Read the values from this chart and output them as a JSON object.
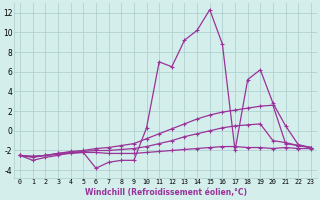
{
  "xlabel": "Windchill (Refroidissement éolien,°C)",
  "bg_color": "#d4eeec",
  "line_color": "#993399",
  "grid_color": "#aacccc",
  "x_ticks": [
    0,
    1,
    2,
    3,
    4,
    5,
    6,
    7,
    8,
    9,
    10,
    11,
    12,
    13,
    14,
    15,
    16,
    17,
    18,
    19,
    20,
    21,
    22,
    23
  ],
  "ylim": [
    -4.8,
    13
  ],
  "xlim": [
    -0.5,
    23.5
  ],
  "yticks": [
    -4,
    -2,
    0,
    2,
    4,
    6,
    8,
    10,
    12
  ],
  "series": [
    {
      "x": [
        0,
        1,
        2,
        3,
        4,
        5,
        6,
        7,
        8,
        9,
        10,
        11,
        12,
        13,
        14,
        15,
        16,
        17,
        18,
        19,
        20,
        21,
        22,
        23
      ],
      "y": [
        -2.5,
        -3.0,
        -2.7,
        -2.5,
        -2.2,
        -2.2,
        -3.8,
        -3.2,
        -3.0,
        -3.0,
        0.3,
        7.0,
        6.5,
        9.2,
        10.2,
        12.3,
        8.8,
        -2.0,
        5.2,
        6.2,
        2.8,
        0.5,
        -1.4,
        -1.7
      ]
    },
    {
      "x": [
        0,
        1,
        2,
        3,
        4,
        5,
        6,
        7,
        8,
        9,
        10,
        11,
        12,
        13,
        14,
        15,
        16,
        17,
        18,
        19,
        20,
        21,
        22,
        23
      ],
      "y": [
        -2.5,
        -2.7,
        -2.5,
        -2.3,
        -2.1,
        -2.0,
        -1.8,
        -1.7,
        -1.5,
        -1.3,
        -0.8,
        -0.3,
        0.2,
        0.7,
        1.2,
        1.6,
        1.9,
        2.1,
        2.3,
        2.5,
        2.6,
        -1.3,
        -1.5,
        -1.7
      ]
    },
    {
      "x": [
        0,
        1,
        2,
        3,
        4,
        5,
        6,
        7,
        8,
        9,
        10,
        11,
        12,
        13,
        14,
        15,
        16,
        17,
        18,
        19,
        20,
        21,
        22,
        23
      ],
      "y": [
        -2.5,
        -2.6,
        -2.5,
        -2.3,
        -2.2,
        -2.1,
        -2.0,
        -2.0,
        -1.9,
        -1.8,
        -1.6,
        -1.3,
        -1.0,
        -0.6,
        -0.3,
        0.0,
        0.3,
        0.5,
        0.6,
        0.7,
        -1.0,
        -1.2,
        -1.5,
        -1.7
      ]
    },
    {
      "x": [
        0,
        1,
        2,
        3,
        4,
        5,
        6,
        7,
        8,
        9,
        10,
        11,
        12,
        13,
        14,
        15,
        16,
        17,
        18,
        19,
        20,
        21,
        22,
        23
      ],
      "y": [
        -2.5,
        -2.6,
        -2.5,
        -2.4,
        -2.3,
        -2.2,
        -2.2,
        -2.3,
        -2.3,
        -2.3,
        -2.2,
        -2.1,
        -2.0,
        -1.9,
        -1.8,
        -1.7,
        -1.6,
        -1.6,
        -1.7,
        -1.7,
        -1.8,
        -1.7,
        -1.8,
        -1.8
      ]
    }
  ]
}
